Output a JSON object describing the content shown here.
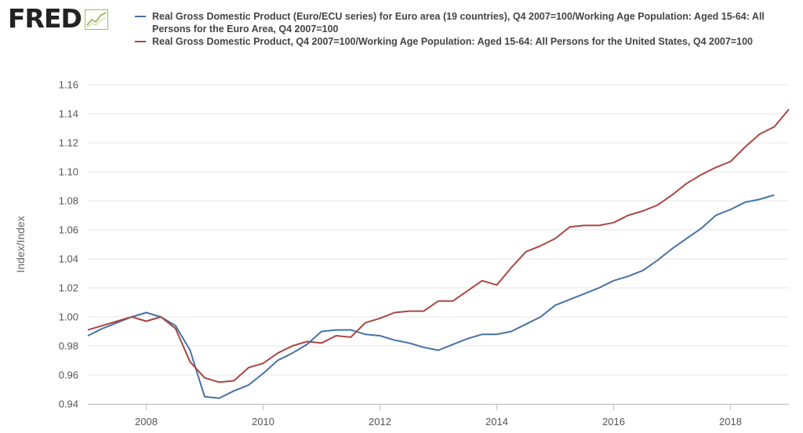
{
  "brand": {
    "logo_text": "FRED",
    "logo_icon": "trend-line-icon"
  },
  "chart_data": {
    "type": "line",
    "xlabel": "",
    "ylabel": "Index/Index",
    "x_range": [
      2007.0,
      2019.0
    ],
    "ylim": [
      0.94,
      1.16
    ],
    "y_ticks": [
      "0.94",
      "0.96",
      "0.98",
      "1.00",
      "1.02",
      "1.04",
      "1.06",
      "1.08",
      "1.10",
      "1.12",
      "1.14",
      "1.16"
    ],
    "x_ticks": [
      "2008",
      "2010",
      "2012",
      "2014",
      "2016",
      "2018"
    ],
    "grid": "horizontal",
    "legend_position": "top",
    "series": [
      {
        "name": "Real Gross Domestic Product (Euro/ECU series) for Euro area (19 countries), Q4 2007=100/Working Age Population: Aged 15-64: All Persons for the Euro Area, Q4 2007=100",
        "color": "#4572a7",
        "points": [
          [
            "2007-01-01",
            0.987
          ],
          [
            "2007-04-01",
            0.992
          ],
          [
            "2007-07-01",
            0.996
          ],
          [
            "2007-10-01",
            1.0
          ],
          [
            "2008-01-01",
            1.003
          ],
          [
            "2008-04-01",
            1.0
          ],
          [
            "2008-07-01",
            0.994
          ],
          [
            "2008-10-01",
            0.977
          ],
          [
            "2009-01-01",
            0.945
          ],
          [
            "2009-04-01",
            0.944
          ],
          [
            "2009-07-01",
            0.949
          ],
          [
            "2009-10-01",
            0.953
          ],
          [
            "2010-01-01",
            0.961
          ],
          [
            "2010-04-01",
            0.97
          ],
          [
            "2010-07-01",
            0.975
          ],
          [
            "2010-10-01",
            0.981
          ],
          [
            "2011-01-01",
            0.99
          ],
          [
            "2011-04-01",
            0.991
          ],
          [
            "2011-07-01",
            0.991
          ],
          [
            "2011-10-01",
            0.988
          ],
          [
            "2012-01-01",
            0.987
          ],
          [
            "2012-04-01",
            0.984
          ],
          [
            "2012-07-01",
            0.982
          ],
          [
            "2012-10-01",
            0.979
          ],
          [
            "2013-01-01",
            0.977
          ],
          [
            "2013-04-01",
            0.981
          ],
          [
            "2013-07-01",
            0.985
          ],
          [
            "2013-10-01",
            0.988
          ],
          [
            "2014-01-01",
            0.988
          ],
          [
            "2014-04-01",
            0.99
          ],
          [
            "2014-07-01",
            0.995
          ],
          [
            "2014-10-01",
            1.0
          ],
          [
            "2015-01-01",
            1.008
          ],
          [
            "2015-04-01",
            1.012
          ],
          [
            "2015-07-01",
            1.016
          ],
          [
            "2015-10-01",
            1.02
          ],
          [
            "2016-01-01",
            1.025
          ],
          [
            "2016-04-01",
            1.028
          ],
          [
            "2016-07-01",
            1.032
          ],
          [
            "2016-10-01",
            1.039
          ],
          [
            "2017-01-01",
            1.047
          ],
          [
            "2017-04-01",
            1.054
          ],
          [
            "2017-07-01",
            1.061
          ],
          [
            "2017-10-01",
            1.07
          ],
          [
            "2018-01-01",
            1.074
          ],
          [
            "2018-04-01",
            1.079
          ],
          [
            "2018-07-01",
            1.081
          ],
          [
            "2018-10-01",
            1.084
          ]
        ]
      },
      {
        "name": "Real Gross Domestic Product, Q4 2007=100/Working Age Population: Aged 15-64: All Persons for the United States, Q4 2007=100",
        "color": "#aa4643",
        "points": [
          [
            "2007-01-01",
            0.991
          ],
          [
            "2007-04-01",
            0.994
          ],
          [
            "2007-07-01",
            0.997
          ],
          [
            "2007-10-01",
            1.0
          ],
          [
            "2008-01-01",
            0.997
          ],
          [
            "2008-04-01",
            1.0
          ],
          [
            "2008-07-01",
            0.992
          ],
          [
            "2008-10-01",
            0.969
          ],
          [
            "2009-01-01",
            0.958
          ],
          [
            "2009-04-01",
            0.955
          ],
          [
            "2009-07-01",
            0.956
          ],
          [
            "2009-10-01",
            0.965
          ],
          [
            "2010-01-01",
            0.968
          ],
          [
            "2010-04-01",
            0.975
          ],
          [
            "2010-07-01",
            0.98
          ],
          [
            "2010-10-01",
            0.983
          ],
          [
            "2011-01-01",
            0.982
          ],
          [
            "2011-04-01",
            0.987
          ],
          [
            "2011-07-01",
            0.986
          ],
          [
            "2011-10-01",
            0.996
          ],
          [
            "2012-01-01",
            0.999
          ],
          [
            "2012-04-01",
            1.003
          ],
          [
            "2012-07-01",
            1.004
          ],
          [
            "2012-10-01",
            1.004
          ],
          [
            "2013-01-01",
            1.011
          ],
          [
            "2013-04-01",
            1.011
          ],
          [
            "2013-07-01",
            1.018
          ],
          [
            "2013-10-01",
            1.025
          ],
          [
            "2014-01-01",
            1.022
          ],
          [
            "2014-04-01",
            1.034
          ],
          [
            "2014-07-01",
            1.045
          ],
          [
            "2014-10-01",
            1.049
          ],
          [
            "2015-01-01",
            1.054
          ],
          [
            "2015-04-01",
            1.062
          ],
          [
            "2015-07-01",
            1.063
          ],
          [
            "2015-10-01",
            1.063
          ],
          [
            "2016-01-01",
            1.065
          ],
          [
            "2016-04-01",
            1.07
          ],
          [
            "2016-07-01",
            1.073
          ],
          [
            "2016-10-01",
            1.077
          ],
          [
            "2017-01-01",
            1.084
          ],
          [
            "2017-04-01",
            1.092
          ],
          [
            "2017-07-01",
            1.098
          ],
          [
            "2017-10-01",
            1.103
          ],
          [
            "2018-01-01",
            1.107
          ],
          [
            "2018-04-01",
            1.117
          ],
          [
            "2018-07-01",
            1.126
          ],
          [
            "2018-10-01",
            1.131
          ],
          [
            "2019-01-01",
            1.143
          ]
        ]
      }
    ]
  }
}
